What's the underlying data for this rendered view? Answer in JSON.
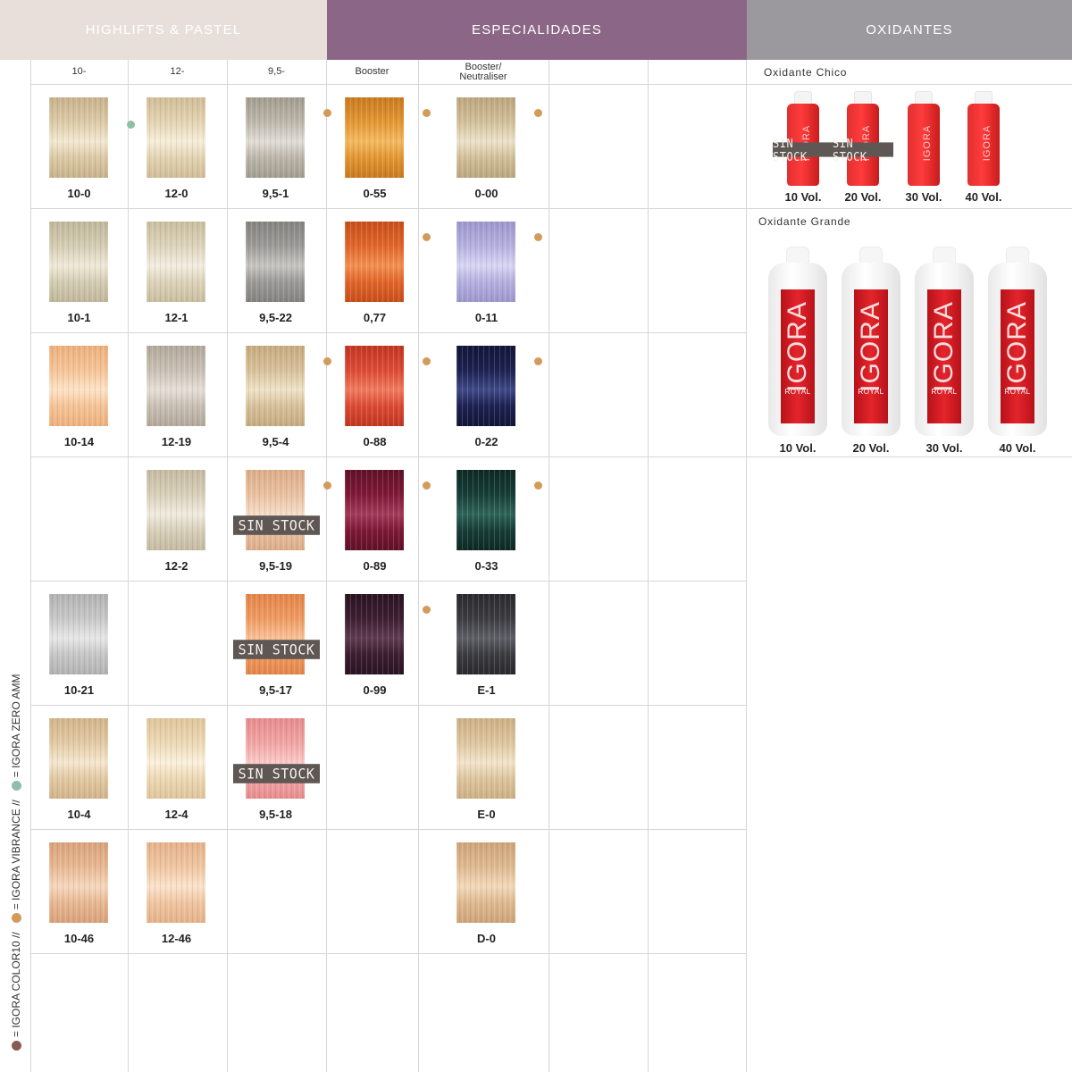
{
  "headers": [
    {
      "label": "HIGHLIFTS & PASTEL",
      "bg": "#e8dfdb",
      "fg": "#ffffff"
    },
    {
      "label": "ESPECIALIDADES",
      "bg": "#8c6687",
      "fg": "#ffffff"
    },
    {
      "label": "OXIDANTES",
      "bg": "#9b999d",
      "fg": "#ffffff"
    }
  ],
  "subheaders": [
    "10-",
    "12-",
    "9,5-",
    "Booster",
    "Booster/ Neutraliser"
  ],
  "colors": {
    "zero_amm": "#8fbfa7",
    "vibrance": "#d39b5a",
    "color10": "#8a5a52"
  },
  "sin_stock_label": "SIN STOCK",
  "swatches": [
    {
      "col": 0,
      "row": 0,
      "code": "10-0",
      "c1": "#dcc9a6",
      "c2": "#f3e8d2",
      "c3": "#c8b28c",
      "dot": "zero_amm"
    },
    {
      "col": 1,
      "row": 0,
      "code": "12-0",
      "c1": "#e3d3b1",
      "c2": "#f6eed9",
      "c3": "#d1bd97"
    },
    {
      "col": 2,
      "row": 0,
      "code": "9,5-1",
      "c1": "#bcb6aa",
      "c2": "#e1ddd6",
      "c3": "#a39c90",
      "dot": "vibrance"
    },
    {
      "col": 3,
      "row": 0,
      "code": "0-55",
      "c1": "#e39632",
      "c2": "#f4b95f",
      "c3": "#c97a1f",
      "dot": "vibrance"
    },
    {
      "col": 4,
      "row": 0,
      "code": "0-00",
      "c1": "#d1bf99",
      "c2": "#ece2ca",
      "c3": "#bba67f",
      "dot": "vibrance"
    },
    {
      "col": 0,
      "row": 1,
      "code": "10-1",
      "c1": "#d4ccb3",
      "c2": "#efe9d9",
      "c3": "#c0b79b"
    },
    {
      "col": 1,
      "row": 1,
      "code": "12-1",
      "c1": "#ddd3ba",
      "c2": "#f3ede0",
      "c3": "#c9be9f"
    },
    {
      "col": 2,
      "row": 1,
      "code": "9,5-22",
      "c1": "#9c9a97",
      "c2": "#c7c5c1",
      "c3": "#858380"
    },
    {
      "col": 3,
      "row": 1,
      "code": "0,77",
      "c1": "#e1652a",
      "c2": "#f29050",
      "c3": "#c84f1b",
      "dot": "vibrance"
    },
    {
      "col": 4,
      "row": 1,
      "code": "0-11",
      "c1": "#b5b0df",
      "c2": "#d8d5f3",
      "c3": "#9d97cf",
      "dot": "vibrance"
    },
    {
      "col": 0,
      "row": 2,
      "code": "10-14",
      "c1": "#f5c497",
      "c2": "#fde2c6",
      "c3": "#eeb07c"
    },
    {
      "col": 1,
      "row": 2,
      "code": "12-19",
      "c1": "#c9bfb3",
      "c2": "#e6dfd7",
      "c3": "#b3a89b"
    },
    {
      "col": 2,
      "row": 2,
      "code": "9,5-4",
      "c1": "#d7c09a",
      "c2": "#efe2c7",
      "c3": "#c6ab80",
      "dot": "vibrance"
    },
    {
      "col": 3,
      "row": 2,
      "code": "0-88",
      "c1": "#dc4a33",
      "c2": "#f07a5e",
      "c3": "#c23622",
      "dot": "vibrance"
    },
    {
      "col": 4,
      "row": 2,
      "code": "0-22",
      "c1": "#1c2150",
      "c2": "#3f4987",
      "c3": "#121639",
      "dot": "vibrance"
    },
    {
      "col": 1,
      "row": 3,
      "code": "12-2",
      "c1": "#d8cfb9",
      "c2": "#f0ebdf",
      "c3": "#c5baa1"
    },
    {
      "col": 2,
      "row": 3,
      "code": "9,5-19",
      "c1": "#e9c1a1",
      "c2": "#f6dcc7",
      "c3": "#dcac88",
      "dot": "vibrance",
      "sin": true
    },
    {
      "col": 3,
      "row": 3,
      "code": "0-89",
      "c1": "#7e1837",
      "c2": "#a33a5a",
      "c3": "#601027",
      "dot": "vibrance"
    },
    {
      "col": 4,
      "row": 3,
      "code": "0-33",
      "c1": "#163d36",
      "c2": "#2f6458",
      "c3": "#0d2924",
      "dot": "vibrance"
    },
    {
      "col": 0,
      "row": 4,
      "code": "10-21",
      "c1": "#c6c7c6",
      "c2": "#e6e7e6",
      "c3": "#b1b2b1"
    },
    {
      "col": 2,
      "row": 4,
      "code": "9,5-17",
      "c1": "#ef9a61",
      "c2": "#f9c097",
      "c3": "#e38549",
      "sin": true
    },
    {
      "col": 3,
      "row": 4,
      "code": "0-99",
      "c1": "#3c1e30",
      "c2": "#5f3a52",
      "c3": "#2a1322",
      "dot": "vibrance"
    },
    {
      "col": 4,
      "row": 4,
      "code": "E-1",
      "c1": "#3b3b40",
      "c2": "#5e5e66",
      "c3": "#2a2a2e"
    },
    {
      "col": 0,
      "row": 5,
      "code": "10-4",
      "c1": "#e2c9a3",
      "c2": "#f5e6cf",
      "c3": "#d2b48a"
    },
    {
      "col": 1,
      "row": 5,
      "code": "12-4",
      "c1": "#ecd8b4",
      "c2": "#fbf0db",
      "c3": "#dfc59b"
    },
    {
      "col": 2,
      "row": 5,
      "code": "9,5-18",
      "c1": "#f1a4a3",
      "c2": "#fac9c7",
      "c3": "#e68d8c",
      "sin": true
    },
    {
      "col": 4,
      "row": 5,
      "code": "E-0",
      "c1": "#ddc59e",
      "c2": "#f2e4cb",
      "c3": "#ccb085"
    },
    {
      "col": 0,
      "row": 6,
      "code": "10-46",
      "c1": "#e7b892",
      "c2": "#f6d7bd",
      "c3": "#d9a27a"
    },
    {
      "col": 1,
      "row": 6,
      "code": "12-46",
      "c1": "#f0c6a1",
      "c2": "#fbe2cb",
      "c3": "#e5b28a"
    },
    {
      "col": 4,
      "row": 6,
      "code": "D-0",
      "c1": "#deb98f",
      "c2": "#f2d9ba",
      "c3": "#cfa479"
    }
  ],
  "oxidante_chico": {
    "title": "Oxidante Chico",
    "items": [
      {
        "label": "10 Vol.",
        "sin": true
      },
      {
        "label": "20 Vol.",
        "sin": true
      },
      {
        "label": "30 Vol."
      },
      {
        "label": "40 Vol."
      }
    ],
    "brand": "IGORA"
  },
  "oxidante_grande": {
    "title": "Oxidante Grande",
    "items": [
      {
        "label": "10 Vol."
      },
      {
        "label": "20 Vol."
      },
      {
        "label": "30 Vol."
      },
      {
        "label": "40 Vol."
      }
    ],
    "brand": "IGORA",
    "sub": "ROYAL"
  },
  "legend": {
    "color10": "= IGORA COLOR10 //",
    "vibrance": "= IGORA VIBRANCE //",
    "zero_amm": "= IGORA ZERO AMM"
  }
}
